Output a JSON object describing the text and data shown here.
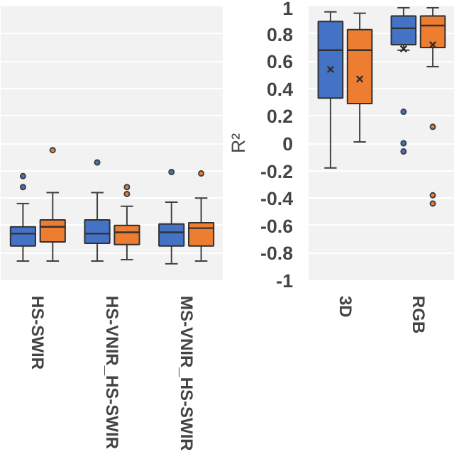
{
  "chart_data": [
    {
      "type": "box",
      "categories": [
        "HS-SWIR",
        "HS-VNIR_HS-SWIR",
        "MS-VNIR_HS-SWIR"
      ],
      "ylim": [
        -1,
        1
      ],
      "yticks": [
        -1,
        -0.8,
        -0.6,
        -0.4,
        -0.2,
        0,
        0.2,
        0.4,
        0.6,
        0.8,
        1
      ],
      "grid": "y",
      "tick_labels": "x",
      "series": [
        {
          "color": "#4472c4",
          "boxes": [
            {
              "low": -0.86,
              "q1": -0.75,
              "median": -0.66,
              "q3": -0.61,
              "high": -0.44,
              "outliers": [
                -0.24,
                -0.32
              ]
            },
            {
              "low": -0.86,
              "q1": -0.73,
              "median": -0.66,
              "q3": -0.56,
              "high": -0.36,
              "outliers": [
                -0.14
              ]
            },
            {
              "low": -0.88,
              "q1": -0.75,
              "median": -0.65,
              "q3": -0.59,
              "high": -0.43,
              "outliers": [
                -0.21
              ]
            }
          ]
        },
        {
          "color": "#ed7d31",
          "boxes": [
            {
              "low": -0.86,
              "q1": -0.72,
              "median": -0.61,
              "q3": -0.56,
              "high": -0.36,
              "outliers": [
                -0.05
              ]
            },
            {
              "low": -0.85,
              "q1": -0.74,
              "median": -0.65,
              "q3": -0.6,
              "high": -0.46,
              "outliers": [
                -0.32,
                -0.37
              ]
            },
            {
              "low": -0.86,
              "q1": -0.75,
              "median": -0.62,
              "q3": -0.58,
              "high": -0.4,
              "outliers": [
                -0.22
              ]
            }
          ]
        }
      ]
    },
    {
      "type": "box",
      "categories": [
        "3D",
        "RGB"
      ],
      "ylabel": "R²",
      "ylim": [
        -1,
        1
      ],
      "yticks": [
        -1,
        -0.8,
        -0.6,
        -0.4,
        -0.2,
        0,
        0.2,
        0.4,
        0.6,
        0.8,
        1
      ],
      "grid": "y",
      "series": [
        {
          "color": "#4472c4",
          "boxes": [
            {
              "low": -0.18,
              "q1": 0.33,
              "median": 0.68,
              "q3": 0.89,
              "high": 0.96,
              "mean": 0.54
            },
            {
              "low": 0.68,
              "q1": 0.72,
              "median": 0.84,
              "q3": 0.93,
              "high": 0.99,
              "mean": 0.69,
              "outliers": [
                0.23,
                0.0,
                -0.06
              ]
            }
          ]
        },
        {
          "color": "#ed7d31",
          "boxes": [
            {
              "low": 0.01,
              "q1": 0.29,
              "median": 0.68,
              "q3": 0.83,
              "high": 0.95,
              "mean": 0.47
            },
            {
              "low": 0.56,
              "q1": 0.7,
              "median": 0.86,
              "q3": 0.93,
              "high": 0.99,
              "mean": 0.72,
              "outliers": [
                0.12,
                -0.38,
                -0.44
              ]
            }
          ]
        }
      ]
    }
  ]
}
